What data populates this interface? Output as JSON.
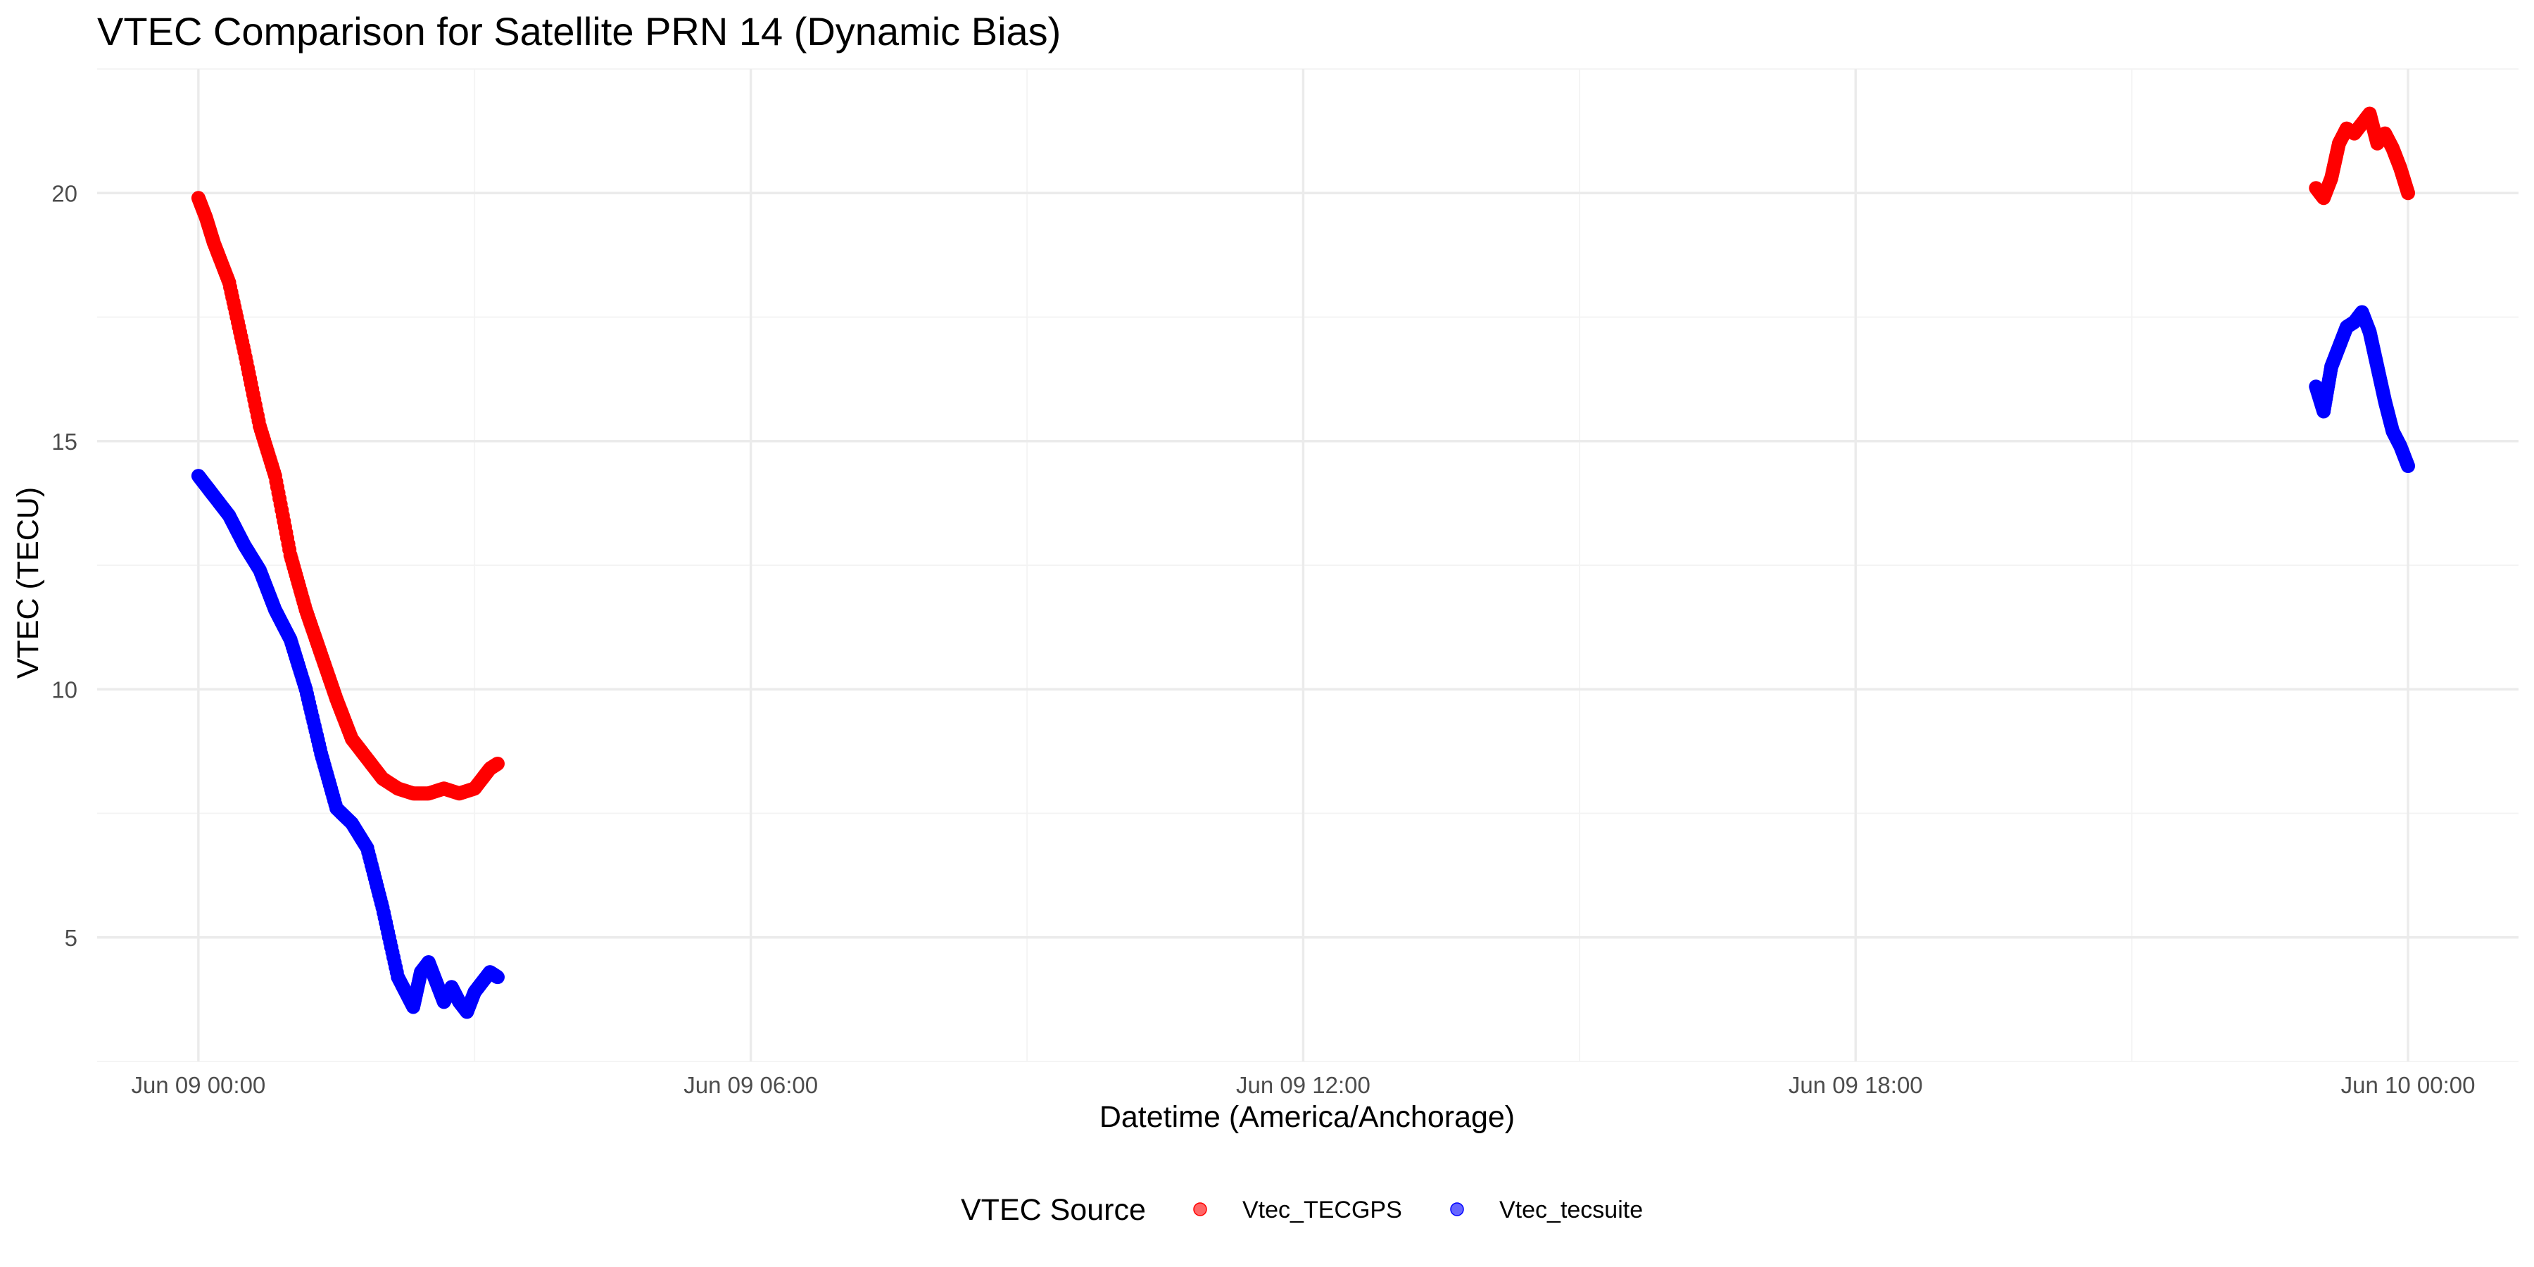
{
  "chart_data": {
    "type": "scatter",
    "title": "VTEC Comparison for Satellite PRN 14 (Dynamic Bias)",
    "xlabel": "Datetime (America/Anchorage)",
    "ylabel": "VTEC (TECU)",
    "x_ticks": [
      "Jun 09 00:00",
      "Jun 09 06:00",
      "Jun 09 12:00",
      "Jun 09 18:00",
      "Jun 10 00:00"
    ],
    "x_tick_hours": [
      0,
      6,
      12,
      18,
      24
    ],
    "xlim_hours": [
      -1.1,
      25.2
    ],
    "y_ticks": [
      5,
      10,
      15,
      20
    ],
    "ylim": [
      2.5,
      22.5
    ],
    "grid": true,
    "legend": {
      "title": "VTEC Source",
      "position": "bottom"
    },
    "series": [
      {
        "name": "Vtec_TECGPS",
        "color": "#ff0000",
        "segments": [
          {
            "x": [
              "2024-06-09 00:00",
              "2024-06-09 00:05",
              "2024-06-09 00:10",
              "2024-06-09 00:20",
              "2024-06-09 00:30",
              "2024-06-09 00:40",
              "2024-06-09 00:50",
              "2024-06-09 01:00",
              "2024-06-09 01:10",
              "2024-06-09 01:20",
              "2024-06-09 01:30",
              "2024-06-09 01:40",
              "2024-06-09 01:50",
              "2024-06-09 02:00",
              "2024-06-09 02:10",
              "2024-06-09 02:20",
              "2024-06-09 02:30",
              "2024-06-09 02:40",
              "2024-06-09 02:50",
              "2024-06-09 03:00",
              "2024-06-09 03:05",
              "2024-06-09 03:10",
              "2024-06-09 03:15"
            ],
            "y": [
              19.9,
              19.5,
              19.0,
              18.2,
              16.8,
              15.3,
              14.3,
              12.7,
              11.6,
              10.7,
              9.8,
              9.0,
              8.6,
              8.2,
              8.0,
              7.9,
              7.9,
              8.0,
              7.9,
              8.0,
              8.2,
              8.4,
              8.5
            ]
          },
          {
            "x": [
              "2024-06-09 23:00",
              "2024-06-09 23:05",
              "2024-06-09 23:10",
              "2024-06-09 23:15",
              "2024-06-09 23:20",
              "2024-06-09 23:25",
              "2024-06-09 23:30",
              "2024-06-09 23:35",
              "2024-06-09 23:40",
              "2024-06-09 23:45",
              "2024-06-09 23:50",
              "2024-06-09 23:55",
              "2024-06-10 00:00"
            ],
            "y": [
              20.1,
              19.9,
              20.3,
              21.0,
              21.3,
              21.2,
              21.4,
              21.6,
              21.0,
              21.2,
              20.9,
              20.5,
              20.0
            ]
          }
        ]
      },
      {
        "name": "Vtec_tecsuite",
        "color": "#0000ff",
        "segments": [
          {
            "x": [
              "2024-06-09 00:00",
              "2024-06-09 00:05",
              "2024-06-09 00:10",
              "2024-06-09 00:20",
              "2024-06-09 00:30",
              "2024-06-09 00:40",
              "2024-06-09 00:50",
              "2024-06-09 01:00",
              "2024-06-09 01:10",
              "2024-06-09 01:20",
              "2024-06-09 01:30",
              "2024-06-09 01:40",
              "2024-06-09 01:50",
              "2024-06-09 02:00",
              "2024-06-09 02:10",
              "2024-06-09 02:20",
              "2024-06-09 02:25",
              "2024-06-09 02:30",
              "2024-06-09 02:35",
              "2024-06-09 02:40",
              "2024-06-09 02:45",
              "2024-06-09 02:50",
              "2024-06-09 02:55",
              "2024-06-09 03:00",
              "2024-06-09 03:05",
              "2024-06-09 03:10",
              "2024-06-09 03:15"
            ],
            "y": [
              14.3,
              14.1,
              13.9,
              13.5,
              12.9,
              12.4,
              11.6,
              11.0,
              10.0,
              8.7,
              7.6,
              7.3,
              6.8,
              5.6,
              4.2,
              3.6,
              4.3,
              4.5,
              4.1,
              3.7,
              4.0,
              3.7,
              3.5,
              3.9,
              4.1,
              4.3,
              4.2
            ]
          },
          {
            "x": [
              "2024-06-09 23:00",
              "2024-06-09 23:05",
              "2024-06-09 23:10",
              "2024-06-09 23:15",
              "2024-06-09 23:20",
              "2024-06-09 23:25",
              "2024-06-09 23:30",
              "2024-06-09 23:35",
              "2024-06-09 23:40",
              "2024-06-09 23:45",
              "2024-06-09 23:50",
              "2024-06-09 23:55",
              "2024-06-10 00:00"
            ],
            "y": [
              16.1,
              15.6,
              16.5,
              16.9,
              17.3,
              17.4,
              17.6,
              17.2,
              16.5,
              15.8,
              15.2,
              14.9,
              14.5
            ]
          }
        ]
      }
    ]
  }
}
